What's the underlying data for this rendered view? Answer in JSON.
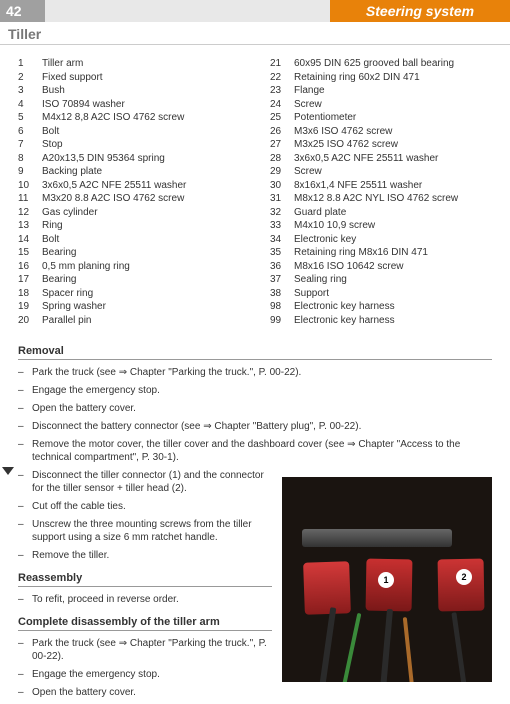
{
  "header": {
    "page_number": "42",
    "title": "Steering system"
  },
  "subtitle": "Tiller",
  "parts_left": [
    {
      "n": "1",
      "t": "Tiller arm"
    },
    {
      "n": "2",
      "t": "Fixed support"
    },
    {
      "n": "3",
      "t": "Bush"
    },
    {
      "n": "4",
      "t": "ISO 70894 washer"
    },
    {
      "n": "5",
      "t": "M4x12 8,8 A2C ISO 4762 screw"
    },
    {
      "n": "6",
      "t": "Bolt"
    },
    {
      "n": "7",
      "t": "Stop"
    },
    {
      "n": "8",
      "t": "A20x13,5 DIN 95364 spring"
    },
    {
      "n": "9",
      "t": "Backing plate"
    },
    {
      "n": "10",
      "t": "3x6x0,5 A2C NFE 25511 washer"
    },
    {
      "n": "11",
      "t": "M3x20 8.8 A2C ISO 4762 screw"
    },
    {
      "n": "12",
      "t": "Gas cylinder"
    },
    {
      "n": "13",
      "t": "Ring"
    },
    {
      "n": "14",
      "t": "Bolt"
    },
    {
      "n": "15",
      "t": "Bearing"
    },
    {
      "n": "16",
      "t": "0,5 mm planing ring"
    },
    {
      "n": "17",
      "t": "Bearing"
    },
    {
      "n": "18",
      "t": "Spacer ring"
    },
    {
      "n": "19",
      "t": "Spring washer"
    },
    {
      "n": "20",
      "t": "Parallel pin"
    }
  ],
  "parts_right": [
    {
      "n": "21",
      "t": "60x95 DIN 625 grooved ball bearing"
    },
    {
      "n": "22",
      "t": "Retaining ring 60x2 DIN 471"
    },
    {
      "n": "23",
      "t": "Flange"
    },
    {
      "n": "24",
      "t": "Screw"
    },
    {
      "n": "25",
      "t": "Potentiometer"
    },
    {
      "n": "26",
      "t": "M3x6 ISO 4762 screw"
    },
    {
      "n": "27",
      "t": "M3x25 ISO 4762 screw"
    },
    {
      "n": "28",
      "t": "3x6x0,5 A2C NFE 25511 washer"
    },
    {
      "n": "29",
      "t": "Screw"
    },
    {
      "n": "30",
      "t": "8x16x1,4 NFE 25511 washer"
    },
    {
      "n": "31",
      "t": "M8x12 8.8 A2C NYL ISO 4762 screw"
    },
    {
      "n": "32",
      "t": "Guard plate"
    },
    {
      "n": "33",
      "t": "M4x10 10,9 screw"
    },
    {
      "n": "34",
      "t": "Electronic key"
    },
    {
      "n": "35",
      "t": "Retaining ring M8x16 DIN 471"
    },
    {
      "n": "36",
      "t": "M8x16 ISO 10642 screw"
    },
    {
      "n": "37",
      "t": "Sealing ring"
    },
    {
      "n": "38",
      "t": "Support"
    },
    {
      "n": "98",
      "t": "Electronic key harness"
    },
    {
      "n": "99",
      "t": "Electronic key harness"
    }
  ],
  "removal_h": "Removal",
  "removal_steps_a": [
    "Park the truck (see ⇒ Chapter \"Parking the truck.\", P. 00-22).",
    "Engage the emergency stop.",
    "Open the battery cover.",
    "Disconnect the battery connector (see ⇒ Chapter \"Battery plug\", P. 00-22).",
    "Remove the motor cover, the tiller cover and the dashboard cover (see ⇒ Chapter \"Access to the technical compartment\", P. 30-1)."
  ],
  "removal_steps_b": [
    "Disconnect the tiller connector (1) and the connector for the tiller sensor + tiller head (2).",
    "Cut off the cable ties.",
    "Unscrew the three mounting screws from the tiller support using a size 6 mm ratchet handle.",
    "Remove the tiller."
  ],
  "reassembly_h": "Reassembly",
  "reassembly_steps": [
    "To refit, proceed in reverse order."
  ],
  "disassembly_h": "Complete disassembly of the tiller arm",
  "disassembly_steps": [
    "Park the truck (see ⇒ Chapter \"Parking the truck.\", P. 00-22).",
    "Engage the emergency stop.",
    "Open the battery cover."
  ],
  "photo": {
    "tag1": "1",
    "tag2": "2"
  }
}
